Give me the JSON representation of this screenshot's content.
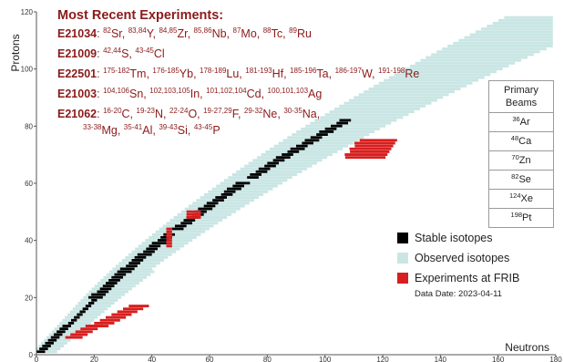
{
  "chart_data": {
    "type": "scatter",
    "title": "",
    "xlabel": "Neutrons",
    "ylabel": "Protons",
    "xlim": [
      0,
      180
    ],
    "ylim": [
      0,
      120
    ],
    "x_ticks": [
      0,
      20,
      40,
      60,
      80,
      100,
      120,
      140,
      160,
      180
    ],
    "y_ticks": [
      0,
      20,
      40,
      60,
      80,
      100,
      120
    ],
    "grid": false,
    "legend_position": "bottom-right",
    "colors": {
      "stable": "#000000",
      "observed": "#c9e6e4",
      "frib": "#d81e1e"
    },
    "series": [
      {
        "name": "Stable isotopes",
        "color": "#000000",
        "region": "valley of stability, N from 0 to 126, Z from 0 to 82"
      },
      {
        "name": "Observed isotopes",
        "color": "#c9e6e4",
        "region": "band around the stability valley, N from 0 to about 178, Z from 0 to about 118"
      },
      {
        "name": "Experiments at FRIB",
        "color": "#d81e1e",
        "clusters": [
          {
            "element": "Re-W-Ta-Hf-Lu-Yb-Tm",
            "z_range": [
              69,
              75
            ],
            "n_range": [
              106,
              124
            ]
          },
          {
            "element": "Cd-In-Sn",
            "z_range": [
              48,
              50
            ],
            "n_range": [
              52,
              56
            ]
          },
          {
            "element": "Sr-Y-Zr-Nb-Mo-Tc-Ru",
            "z_range": [
              38,
              44
            ],
            "n_range": [
              45,
              46
            ]
          },
          {
            "element": "Na-Mg-Al-Si-P-Cl",
            "z_range": [
              10,
              17
            ],
            "n_range": [
              18,
              38
            ]
          },
          {
            "element": "C-N-O-F-Ne",
            "z_range": [
              6,
              10
            ],
            "n_range": [
              10,
              22
            ]
          }
        ]
      }
    ]
  },
  "experiments": {
    "heading": "Most Recent Experiments:",
    "list": [
      {
        "id": "E21034",
        "items": [
          {
            "mass": "82",
            "symbol": "Sr"
          },
          {
            "mass": "83,84",
            "symbol": "Y"
          },
          {
            "mass": "84,85",
            "symbol": "Zr"
          },
          {
            "mass": "85,86",
            "symbol": "Nb"
          },
          {
            "mass": "87",
            "symbol": "Mo"
          },
          {
            "mass": "88",
            "symbol": "Tc"
          },
          {
            "mass": "89",
            "symbol": "Ru"
          }
        ]
      },
      {
        "id": "E21009",
        "items": [
          {
            "mass": "42,44",
            "symbol": "S"
          },
          {
            "mass": "43-45",
            "symbol": "Cl"
          }
        ]
      },
      {
        "id": "E22501",
        "items": [
          {
            "mass": "175-182",
            "symbol": "Tm"
          },
          {
            "mass": "176-185",
            "symbol": "Yb"
          },
          {
            "mass": "178-189",
            "symbol": "Lu"
          },
          {
            "mass": "181-193",
            "symbol": "Hf"
          },
          {
            "mass": "185-196",
            "symbol": "Ta"
          },
          {
            "mass": "186-197",
            "symbol": "W"
          },
          {
            "mass": "191-198",
            "symbol": "Re"
          }
        ]
      },
      {
        "id": "E21003",
        "items": [
          {
            "mass": "104,106",
            "symbol": "Sn"
          },
          {
            "mass": "102,103,105",
            "symbol": "In"
          },
          {
            "mass": "101,102,104",
            "symbol": "Cd"
          },
          {
            "mass": "100,101,103",
            "symbol": "Ag"
          }
        ]
      },
      {
        "id": "E21062",
        "items": [
          {
            "mass": "16-20",
            "symbol": "C"
          },
          {
            "mass": "19-23",
            "symbol": "N"
          },
          {
            "mass": "22-24",
            "symbol": "O"
          },
          {
            "mass": "19-27,29",
            "symbol": "F"
          },
          {
            "mass": "29-32",
            "symbol": "Ne"
          },
          {
            "mass": "30-35",
            "symbol": "Na"
          }
        ],
        "items_line2": [
          {
            "mass": "33-38",
            "symbol": "Mg"
          },
          {
            "mass": "35-41",
            "symbol": "Al"
          },
          {
            "mass": "39-43",
            "symbol": "Si"
          },
          {
            "mass": "43-45",
            "symbol": "P"
          }
        ]
      }
    ]
  },
  "beams": {
    "header_line1": "Primary",
    "header_line2": "Beams",
    "rows": [
      {
        "mass": "36",
        "symbol": "Ar"
      },
      {
        "mass": "48",
        "symbol": "Ca"
      },
      {
        "mass": "70",
        "symbol": "Zn"
      },
      {
        "mass": "82",
        "symbol": "Se"
      },
      {
        "mass": "124",
        "symbol": "Xe"
      },
      {
        "mass": "198",
        "symbol": "Pt"
      }
    ]
  },
  "legend": {
    "items": [
      {
        "label": "Stable isotopes",
        "color": "#000000"
      },
      {
        "label": "Observed isotopes",
        "color": "#c9e6e4"
      },
      {
        "label": "Experiments at FRIB",
        "color": "#d81e1e"
      }
    ],
    "data_date": "Data Date: 2023-04-11"
  }
}
